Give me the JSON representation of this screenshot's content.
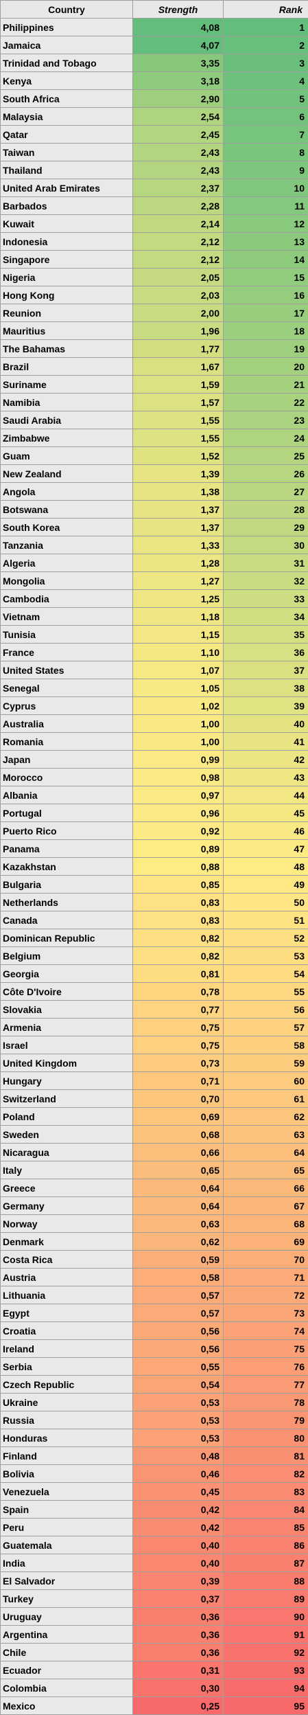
{
  "headers": {
    "country": "Country",
    "strength": "Strength",
    "rank": "Rank"
  },
  "rows": [
    {
      "country": "Philippines",
      "strength": "4,08",
      "rank": "1"
    },
    {
      "country": "Jamaica",
      "strength": "4,07",
      "rank": "2"
    },
    {
      "country": "Trinidad and Tobago",
      "strength": "3,35",
      "rank": "3"
    },
    {
      "country": "Kenya",
      "strength": "3,18",
      "rank": "4"
    },
    {
      "country": "South Africa",
      "strength": "2,90",
      "rank": "5"
    },
    {
      "country": "Malaysia",
      "strength": "2,54",
      "rank": "6"
    },
    {
      "country": "Qatar",
      "strength": "2,45",
      "rank": "7"
    },
    {
      "country": "Taiwan",
      "strength": "2,43",
      "rank": "8"
    },
    {
      "country": "Thailand",
      "strength": "2,43",
      "rank": "9"
    },
    {
      "country": "United Arab Emirates",
      "strength": "2,37",
      "rank": "10"
    },
    {
      "country": "Barbados",
      "strength": "2,28",
      "rank": "11"
    },
    {
      "country": "Kuwait",
      "strength": "2,14",
      "rank": "12"
    },
    {
      "country": "Indonesia",
      "strength": "2,12",
      "rank": "13"
    },
    {
      "country": "Singapore",
      "strength": "2,12",
      "rank": "14"
    },
    {
      "country": "Nigeria",
      "strength": "2,05",
      "rank": "15"
    },
    {
      "country": "Hong Kong",
      "strength": "2,03",
      "rank": "16"
    },
    {
      "country": "Reunion",
      "strength": "2,00",
      "rank": "17"
    },
    {
      "country": "Mauritius",
      "strength": "1,96",
      "rank": "18"
    },
    {
      "country": "The Bahamas",
      "strength": "1,77",
      "rank": "19"
    },
    {
      "country": "Brazil",
      "strength": "1,67",
      "rank": "20"
    },
    {
      "country": "Suriname",
      "strength": "1,59",
      "rank": "21"
    },
    {
      "country": "Namibia",
      "strength": "1,57",
      "rank": "22"
    },
    {
      "country": "Saudi Arabia",
      "strength": "1,55",
      "rank": "23"
    },
    {
      "country": "Zimbabwe",
      "strength": "1,55",
      "rank": "24"
    },
    {
      "country": "Guam",
      "strength": "1,52",
      "rank": "25"
    },
    {
      "country": "New Zealand",
      "strength": "1,39",
      "rank": "26"
    },
    {
      "country": "Angola",
      "strength": "1,38",
      "rank": "27"
    },
    {
      "country": "Botswana",
      "strength": "1,37",
      "rank": "28"
    },
    {
      "country": "South Korea",
      "strength": "1,37",
      "rank": "29"
    },
    {
      "country": "Tanzania",
      "strength": "1,33",
      "rank": "30"
    },
    {
      "country": "Algeria",
      "strength": "1,28",
      "rank": "31"
    },
    {
      "country": "Mongolia",
      "strength": "1,27",
      "rank": "32"
    },
    {
      "country": "Cambodia",
      "strength": "1,25",
      "rank": "33"
    },
    {
      "country": "Vietnam",
      "strength": "1,18",
      "rank": "34"
    },
    {
      "country": "Tunisia",
      "strength": "1,15",
      "rank": "35"
    },
    {
      "country": "France",
      "strength": "1,10",
      "rank": "36"
    },
    {
      "country": "United States",
      "strength": "1,07",
      "rank": "37"
    },
    {
      "country": "Senegal",
      "strength": "1,05",
      "rank": "38"
    },
    {
      "country": "Cyprus",
      "strength": "1,02",
      "rank": "39"
    },
    {
      "country": "Australia",
      "strength": "1,00",
      "rank": "40"
    },
    {
      "country": "Romania",
      "strength": "1,00",
      "rank": "41"
    },
    {
      "country": "Japan",
      "strength": "0,99",
      "rank": "42"
    },
    {
      "country": "Morocco",
      "strength": "0,98",
      "rank": "43"
    },
    {
      "country": "Albania",
      "strength": "0,97",
      "rank": "44"
    },
    {
      "country": "Portugal",
      "strength": "0,96",
      "rank": "45"
    },
    {
      "country": "Puerto Rico",
      "strength": "0,92",
      "rank": "46"
    },
    {
      "country": "Panama",
      "strength": "0,89",
      "rank": "47"
    },
    {
      "country": "Kazakhstan",
      "strength": "0,88",
      "rank": "48"
    },
    {
      "country": "Bulgaria",
      "strength": "0,85",
      "rank": "49"
    },
    {
      "country": "Netherlands",
      "strength": "0,83",
      "rank": "50"
    },
    {
      "country": "Canada",
      "strength": "0,83",
      "rank": "51"
    },
    {
      "country": "Dominican Republic",
      "strength": "0,82",
      "rank": "52"
    },
    {
      "country": "Belgium",
      "strength": "0,82",
      "rank": "53"
    },
    {
      "country": "Georgia",
      "strength": "0,81",
      "rank": "54"
    },
    {
      "country": "Côte D'Ivoire",
      "strength": "0,78",
      "rank": "55"
    },
    {
      "country": "Slovakia",
      "strength": "0,77",
      "rank": "56"
    },
    {
      "country": "Armenia",
      "strength": "0,75",
      "rank": "57"
    },
    {
      "country": "Israel",
      "strength": "0,75",
      "rank": "58"
    },
    {
      "country": "United Kingdom",
      "strength": "0,73",
      "rank": "59"
    },
    {
      "country": "Hungary",
      "strength": "0,71",
      "rank": "60"
    },
    {
      "country": "Switzerland",
      "strength": "0,70",
      "rank": "61"
    },
    {
      "country": "Poland",
      "strength": "0,69",
      "rank": "62"
    },
    {
      "country": "Sweden",
      "strength": "0,68",
      "rank": "63"
    },
    {
      "country": "Nicaragua",
      "strength": "0,66",
      "rank": "64"
    },
    {
      "country": "Italy",
      "strength": "0,65",
      "rank": "65"
    },
    {
      "country": "Greece",
      "strength": "0,64",
      "rank": "66"
    },
    {
      "country": "Germany",
      "strength": "0,64",
      "rank": "67"
    },
    {
      "country": "Norway",
      "strength": "0,63",
      "rank": "68"
    },
    {
      "country": "Denmark",
      "strength": "0,62",
      "rank": "69"
    },
    {
      "country": "Costa Rica",
      "strength": "0,59",
      "rank": "70"
    },
    {
      "country": "Austria",
      "strength": "0,58",
      "rank": "71"
    },
    {
      "country": "Lithuania",
      "strength": "0,57",
      "rank": "72"
    },
    {
      "country": "Egypt",
      "strength": "0,57",
      "rank": "73"
    },
    {
      "country": "Croatia",
      "strength": "0,56",
      "rank": "74"
    },
    {
      "country": "Ireland",
      "strength": "0,56",
      "rank": "75"
    },
    {
      "country": "Serbia",
      "strength": "0,55",
      "rank": "76"
    },
    {
      "country": "Czech Republic",
      "strength": "0,54",
      "rank": "77"
    },
    {
      "country": "Ukraine",
      "strength": "0,53",
      "rank": "78"
    },
    {
      "country": "Russia",
      "strength": "0,53",
      "rank": "79"
    },
    {
      "country": "Honduras",
      "strength": "0,53",
      "rank": "80"
    },
    {
      "country": "Finland",
      "strength": "0,48",
      "rank": "81"
    },
    {
      "country": "Bolivia",
      "strength": "0,46",
      "rank": "82"
    },
    {
      "country": "Venezuela",
      "strength": "0,45",
      "rank": "83"
    },
    {
      "country": "Spain",
      "strength": "0,42",
      "rank": "84"
    },
    {
      "country": "Peru",
      "strength": "0,42",
      "rank": "85"
    },
    {
      "country": "Guatemala",
      "strength": "0,40",
      "rank": "86"
    },
    {
      "country": "India",
      "strength": "0,40",
      "rank": "87"
    },
    {
      "country": "El Salvador",
      "strength": "0,39",
      "rank": "88"
    },
    {
      "country": "Turkey",
      "strength": "0,37",
      "rank": "89"
    },
    {
      "country": "Uruguay",
      "strength": "0,36",
      "rank": "90"
    },
    {
      "country": "Argentina",
      "strength": "0,36",
      "rank": "91"
    },
    {
      "country": "Chile",
      "strength": "0,36",
      "rank": "92"
    },
    {
      "country": "Ecuador",
      "strength": "0,31",
      "rank": "93"
    },
    {
      "country": "Colombia",
      "strength": "0,30",
      "rank": "94"
    },
    {
      "country": "Mexico",
      "strength": "0,25",
      "rank": "95"
    }
  ],
  "colors": {
    "header_bg": "#e8e8e8",
    "country_bg": "#e9e9e9",
    "border": "#9e9e9e",
    "scale_green": "#63be7b",
    "scale_yellow": "#ffeb84",
    "scale_red": "#f8696b"
  }
}
